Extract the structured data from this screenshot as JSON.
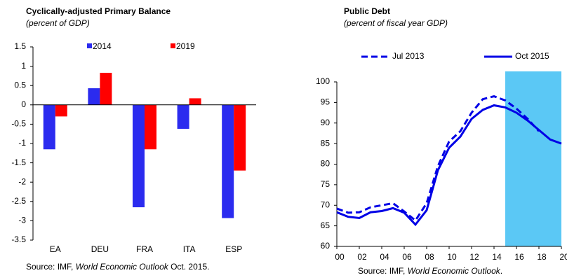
{
  "chart_data": [
    {
      "type": "bar",
      "title": "Cyclically-adjusted Primary Balance",
      "subtitle": "(percent of GDP)",
      "categories": [
        "EA",
        "DEU",
        "FRA",
        "ITA",
        "ESP"
      ],
      "series": [
        {
          "name": "2014",
          "color": "#2b2bef",
          "values": [
            -1.15,
            0.43,
            -2.65,
            -0.62,
            -2.93
          ]
        },
        {
          "name": "2019",
          "color": "#ff0000",
          "values": [
            -0.3,
            0.83,
            -1.15,
            0.17,
            -1.7
          ]
        }
      ],
      "ylim": [
        -3.5,
        1.5
      ],
      "yticks": [
        -3.5,
        -3,
        -2.5,
        -2,
        -1.5,
        -1,
        -0.5,
        0,
        0.5,
        1,
        1.5
      ],
      "source": {
        "prefix": "Source: IMF,",
        "italic": "World Economic Outlook",
        "suffix": "Oct. 2015."
      }
    },
    {
      "type": "line",
      "title": "Public Debt",
      "subtitle": "(percent of fiscal year GDP)",
      "x": [
        2000,
        2001,
        2002,
        2003,
        2004,
        2005,
        2006,
        2007,
        2008,
        2009,
        2010,
        2011,
        2012,
        2013,
        2014,
        2015,
        2016,
        2017,
        2018,
        2019,
        2020
      ],
      "series": [
        {
          "name": "Jul 2013",
          "color": "#0000e6",
          "dashed": true,
          "values": [
            69.2,
            68.2,
            68.3,
            69.5,
            70,
            70.5,
            68.5,
            66.3,
            70.5,
            79.5,
            85.5,
            88,
            92.5,
            95.8,
            96.5,
            95.5,
            93.5,
            91,
            88,
            null,
            null
          ]
        },
        {
          "name": "Oct 2015",
          "color": "#0000e6",
          "dashed": false,
          "values": [
            68.3,
            67.2,
            66.9,
            68.3,
            68.6,
            69.3,
            68.2,
            65.3,
            68.8,
            78.5,
            84,
            86.7,
            91,
            93.2,
            94.3,
            93.8,
            92.5,
            90.6,
            88.3,
            86,
            85
          ]
        }
      ],
      "xlim": [
        2000,
        2020
      ],
      "xticks": [
        {
          "value": 2000,
          "label": "00"
        },
        {
          "value": 2002,
          "label": "02"
        },
        {
          "value": 2004,
          "label": "04"
        },
        {
          "value": 2006,
          "label": "06"
        },
        {
          "value": 2008,
          "label": "08"
        },
        {
          "value": 2010,
          "label": "10"
        },
        {
          "value": 2012,
          "label": "12"
        },
        {
          "value": 2014,
          "label": "14"
        },
        {
          "value": 2016,
          "label": "16"
        },
        {
          "value": 2018,
          "label": "18"
        },
        {
          "value": 2020,
          "label": "20"
        }
      ],
      "ylim": [
        60,
        100
      ],
      "yticks": [
        60,
        65,
        70,
        75,
        80,
        85,
        90,
        95,
        100
      ],
      "shaded_xrange": [
        2015,
        2020
      ],
      "shade_color": "#5bc8f5",
      "source": {
        "prefix": "Source: IMF,",
        "italic": "World Economic Outlook",
        "suffix": "."
      }
    }
  ]
}
